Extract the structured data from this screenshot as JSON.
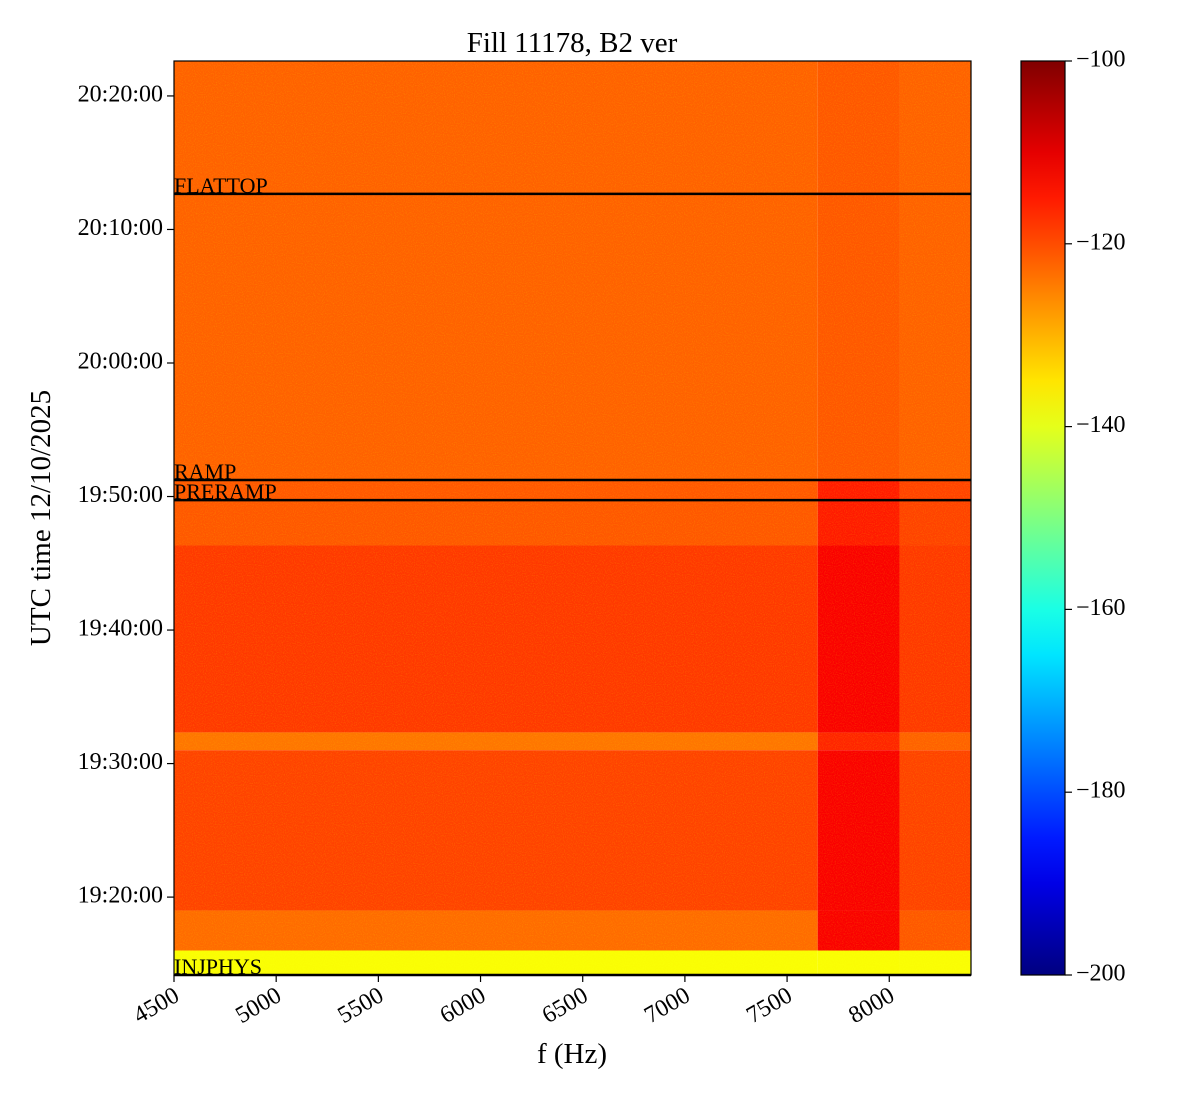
{
  "chart_data": {
    "type": "spectrogram",
    "title": "Fill 11178, B2 ver",
    "xlabel": "f (Hz)",
    "ylabel": "UTC time 12/10/2025",
    "xlim": [
      4500,
      8400
    ],
    "xticks": [
      4500,
      5000,
      5500,
      6000,
      6500,
      7000,
      7500,
      8000
    ],
    "ylim": [
      "19:14:10",
      "20:22:37"
    ],
    "yticks": [
      "19:20:00",
      "19:30:00",
      "19:40:00",
      "19:50:00",
      "20:00:00",
      "20:10:00",
      "20:20:00"
    ],
    "x_edges": [
      4500,
      7650,
      8050,
      8400
    ],
    "y_edges": [
      "20:22:37",
      "19:51:14",
      "19:46:20",
      "19:32:20",
      "19:31:00",
      "19:19:00",
      "19:16:00",
      "19:14:10"
    ],
    "z": [
      [
        -122,
        -121,
        -122
      ],
      [
        -121,
        -115,
        -119
      ],
      [
        -118,
        -112,
        -118
      ],
      [
        -124,
        -116,
        -122
      ],
      [
        -119,
        -112,
        -119
      ],
      [
        -123,
        -112,
        -121
      ],
      [
        -138,
        -138,
        -138
      ]
    ],
    "colormap": "jet",
    "clim": [
      -200,
      -100
    ],
    "cticks": [
      -200,
      -180,
      -160,
      -140,
      -120,
      -100
    ],
    "events": [
      {
        "label": "FLATTOP",
        "time": "20:12:40"
      },
      {
        "label": "RAMP",
        "time": "19:51:14"
      },
      {
        "label": "PRERAMP",
        "time": "19:49:44"
      },
      {
        "label": "INJPHYS",
        "time": "19:14:10"
      }
    ]
  }
}
